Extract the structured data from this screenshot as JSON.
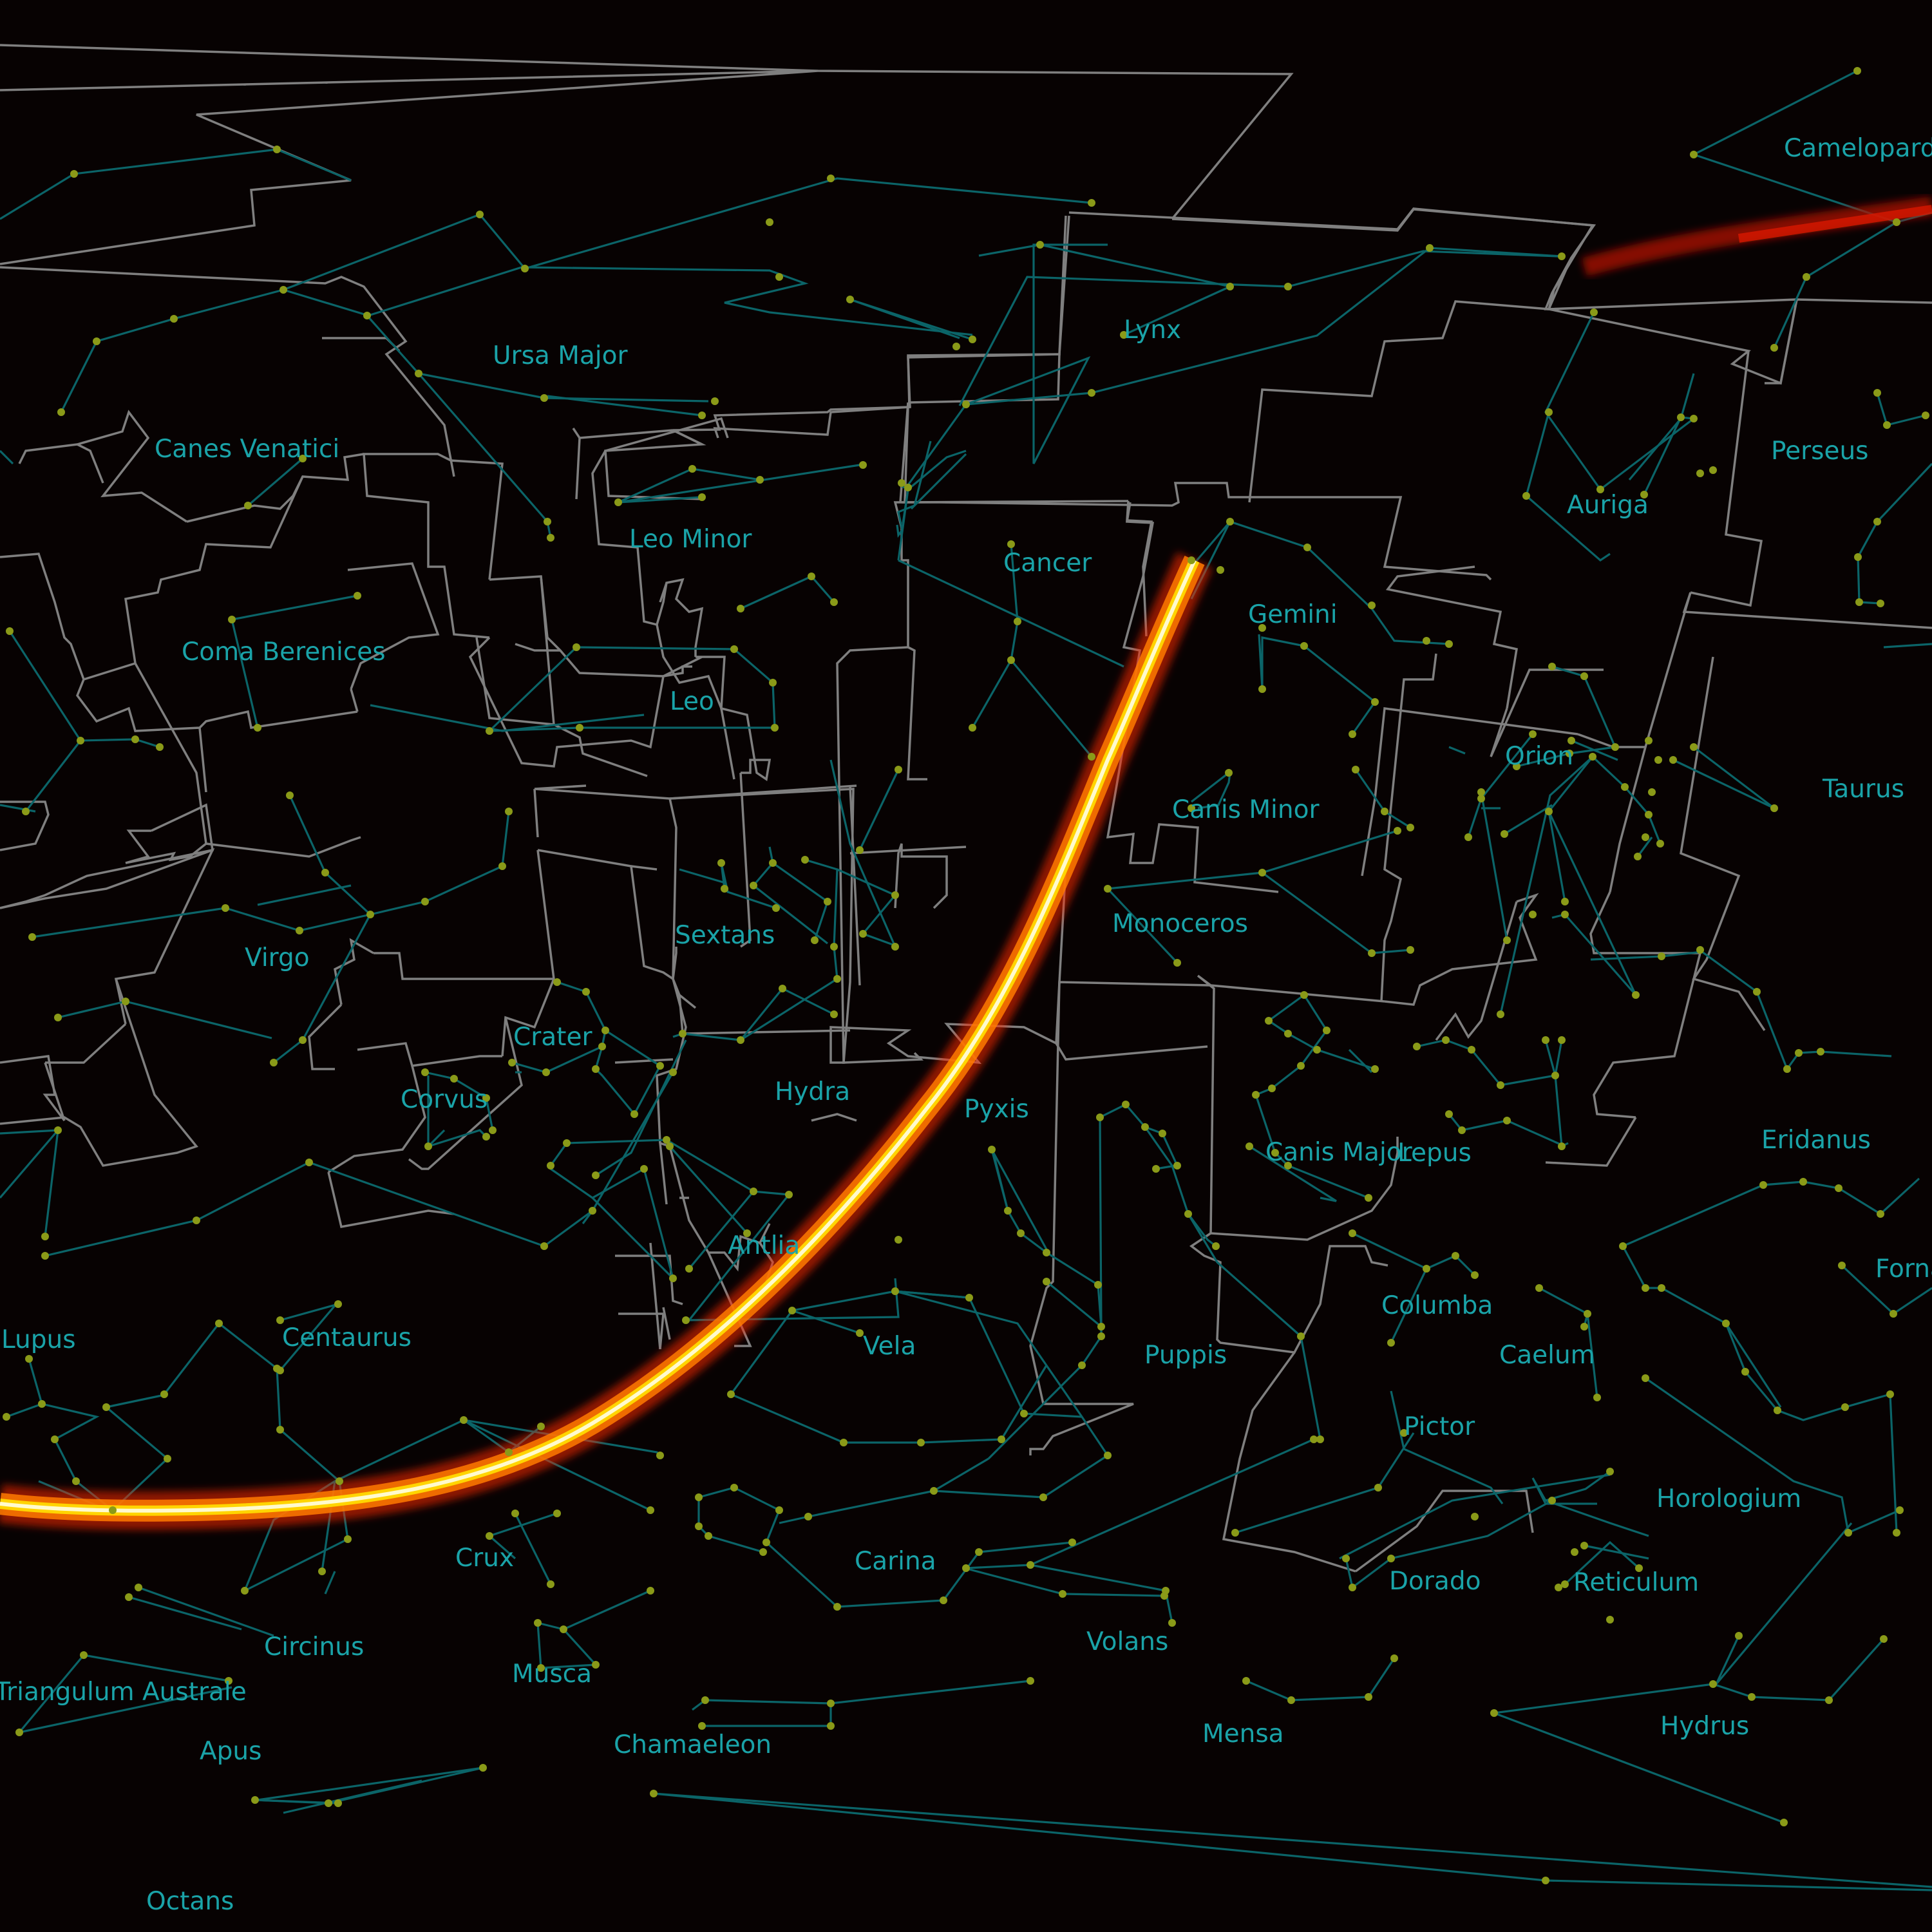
{
  "map": {
    "colors": {
      "background": "#070202",
      "boundary": "#7f7f7f",
      "stick_figure": "#0b6468",
      "star": "#8a9a18",
      "label": "#1aa3a8",
      "track_core": "#fffacd",
      "track_glow": "#ff3300"
    },
    "constellations": [
      "Camelopardalis",
      "Lynx",
      "Ursa Major",
      "Canes Venatici",
      "Perseus",
      "Auriga",
      "Leo Minor",
      "Cancer",
      "Gemini",
      "Coma Berenices",
      "Leo",
      "Orion",
      "Taurus",
      "Canis Minor",
      "Sextans",
      "Monoceros",
      "Virgo",
      "Crater",
      "Hydra",
      "Corvus",
      "Pyxis",
      "Canis Major",
      "Lepus",
      "Eridanus",
      "Antlia",
      "Fornax",
      "Lupus",
      "Centaurus",
      "Columba",
      "Vela",
      "Puppis",
      "Caelum",
      "Pictor",
      "Horologium",
      "Crux",
      "Carina",
      "Dorado",
      "Reticulum",
      "Circinus",
      "Volans",
      "Musca",
      "Triangulum Australe",
      "Mensa",
      "Hydrus",
      "Apus",
      "Chamaeleon",
      "Octans"
    ],
    "labels": [
      {
        "text": "Camelopardalis"
      },
      {
        "text": "Lynx"
      },
      {
        "text": "Ursa Major"
      },
      {
        "text": "Canes Venatici"
      },
      {
        "text": "Perseus"
      },
      {
        "text": "Auriga"
      },
      {
        "text": "Leo Minor"
      },
      {
        "text": "Cancer"
      },
      {
        "text": "Gemini"
      },
      {
        "text": "Coma Berenices"
      },
      {
        "text": "Leo"
      },
      {
        "text": "Orion"
      },
      {
        "text": "Taurus"
      },
      {
        "text": "Canis Minor"
      },
      {
        "text": "Sextans"
      },
      {
        "text": "Monoceros"
      },
      {
        "text": "Virgo"
      },
      {
        "text": "Crater"
      },
      {
        "text": "Hydra"
      },
      {
        "text": "Corvus"
      },
      {
        "text": "Pyxis"
      },
      {
        "text": "Canis Major"
      },
      {
        "text": "Lepus"
      },
      {
        "text": "Eridanus"
      },
      {
        "text": "Antlia"
      },
      {
        "text": "Fornax"
      },
      {
        "text": "Lupus"
      },
      {
        "text": "Centaurus"
      },
      {
        "text": "Columba"
      },
      {
        "text": "Vela"
      },
      {
        "text": "Puppis"
      },
      {
        "text": "Caelum"
      },
      {
        "text": "Pictor"
      },
      {
        "text": "Horologium"
      },
      {
        "text": "Crux"
      },
      {
        "text": "Carina"
      },
      {
        "text": "Dorado"
      },
      {
        "text": "Reticulum"
      },
      {
        "text": "Circinus"
      },
      {
        "text": "Volans"
      },
      {
        "text": "Musca"
      },
      {
        "text": "Triangulum Australe"
      },
      {
        "text": "Mensa"
      },
      {
        "text": "Hydrus"
      },
      {
        "text": "Apus"
      },
      {
        "text": "Chamaeleon"
      },
      {
        "text": "Octans"
      }
    ]
  }
}
